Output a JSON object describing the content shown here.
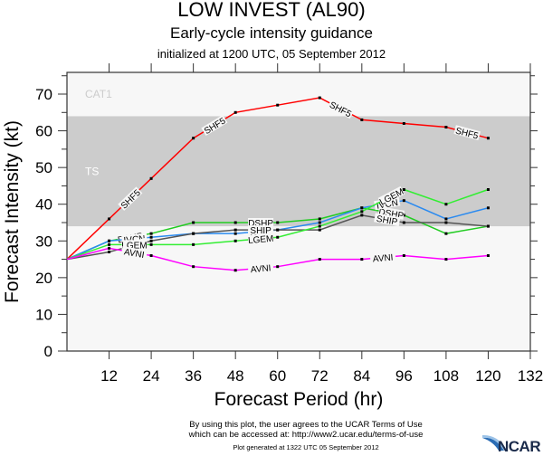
{
  "title": "LOW INVEST (AL90)",
  "subtitle": "Early-cycle intensity guidance",
  "init_line": "initialized at 1200 UTC, 05 September 2012",
  "footer": {
    "terms_line1": "By using this plot, the user agrees to the UCAR Terms of Use",
    "terms_line2": "which can be accessed at: http://www2.ucar.edu/terms-of-use",
    "generated": "Plot generated at 1322 UTC   05 September 2012",
    "logo": "NCAR"
  },
  "chart_data": {
    "type": "line",
    "title": "LOW INVEST (AL90)",
    "xlabel": "Forecast Period (hr)",
    "ylabel": "Forecast Intensity (kt)",
    "xlim": [
      0,
      132
    ],
    "ylim": [
      0,
      75
    ],
    "xticks": [
      12,
      24,
      36,
      48,
      60,
      72,
      84,
      96,
      108,
      120,
      132
    ],
    "yticks": [
      0,
      10,
      20,
      30,
      40,
      50,
      60,
      70
    ],
    "bands": [
      {
        "label": "TS",
        "from": 34,
        "to": 64,
        "color": "#cccccc"
      },
      {
        "label": "CAT1",
        "from": 64,
        "to": 75,
        "color": "#f7f7f7"
      }
    ],
    "x": [
      0,
      12,
      24,
      36,
      48,
      60,
      72,
      84,
      96,
      108,
      120
    ],
    "series": [
      {
        "name": "SHF5",
        "color": "#ff0000",
        "values": [
          25,
          36,
          47,
          58,
          65,
          67,
          69,
          63,
          62,
          61,
          58
        ],
        "label_at": [
          1.5,
          3.5,
          6.5,
          9.5
        ]
      },
      {
        "name": "DSHP",
        "color": "#22cc22",
        "values": [
          25,
          30,
          32,
          35,
          35,
          35,
          36,
          39,
          37,
          32,
          34
        ],
        "label_at": [
          1.5,
          4.6,
          7.7
        ]
      },
      {
        "name": "IVCN",
        "color": "#2a8af0",
        "values": [
          25,
          30,
          31,
          32,
          32,
          33,
          35,
          39,
          41,
          36,
          39
        ],
        "label_at": [
          1.6,
          4.6,
          7.6
        ]
      },
      {
        "name": "SHIP",
        "color": "#555555",
        "values": [
          25,
          27,
          30,
          32,
          33,
          33,
          33,
          37,
          35,
          35,
          34
        ],
        "label_at": [
          1.6,
          4.6,
          7.6
        ]
      },
      {
        "name": "LGEM",
        "color": "#33ee33",
        "values": [
          25,
          29,
          29,
          29,
          30,
          31,
          34,
          38,
          44,
          40,
          44
        ],
        "label_at": [
          1.6,
          4.6,
          7.7
        ]
      },
      {
        "name": "AVNI",
        "color": "#ff00ff",
        "values": [
          25,
          28,
          26,
          23,
          22,
          23,
          25,
          25,
          26,
          25,
          26
        ],
        "label_at": [
          1.6,
          4.6,
          7.5,
          10.5
        ]
      }
    ],
    "grid": false,
    "legend": "none (inline line labels)"
  }
}
